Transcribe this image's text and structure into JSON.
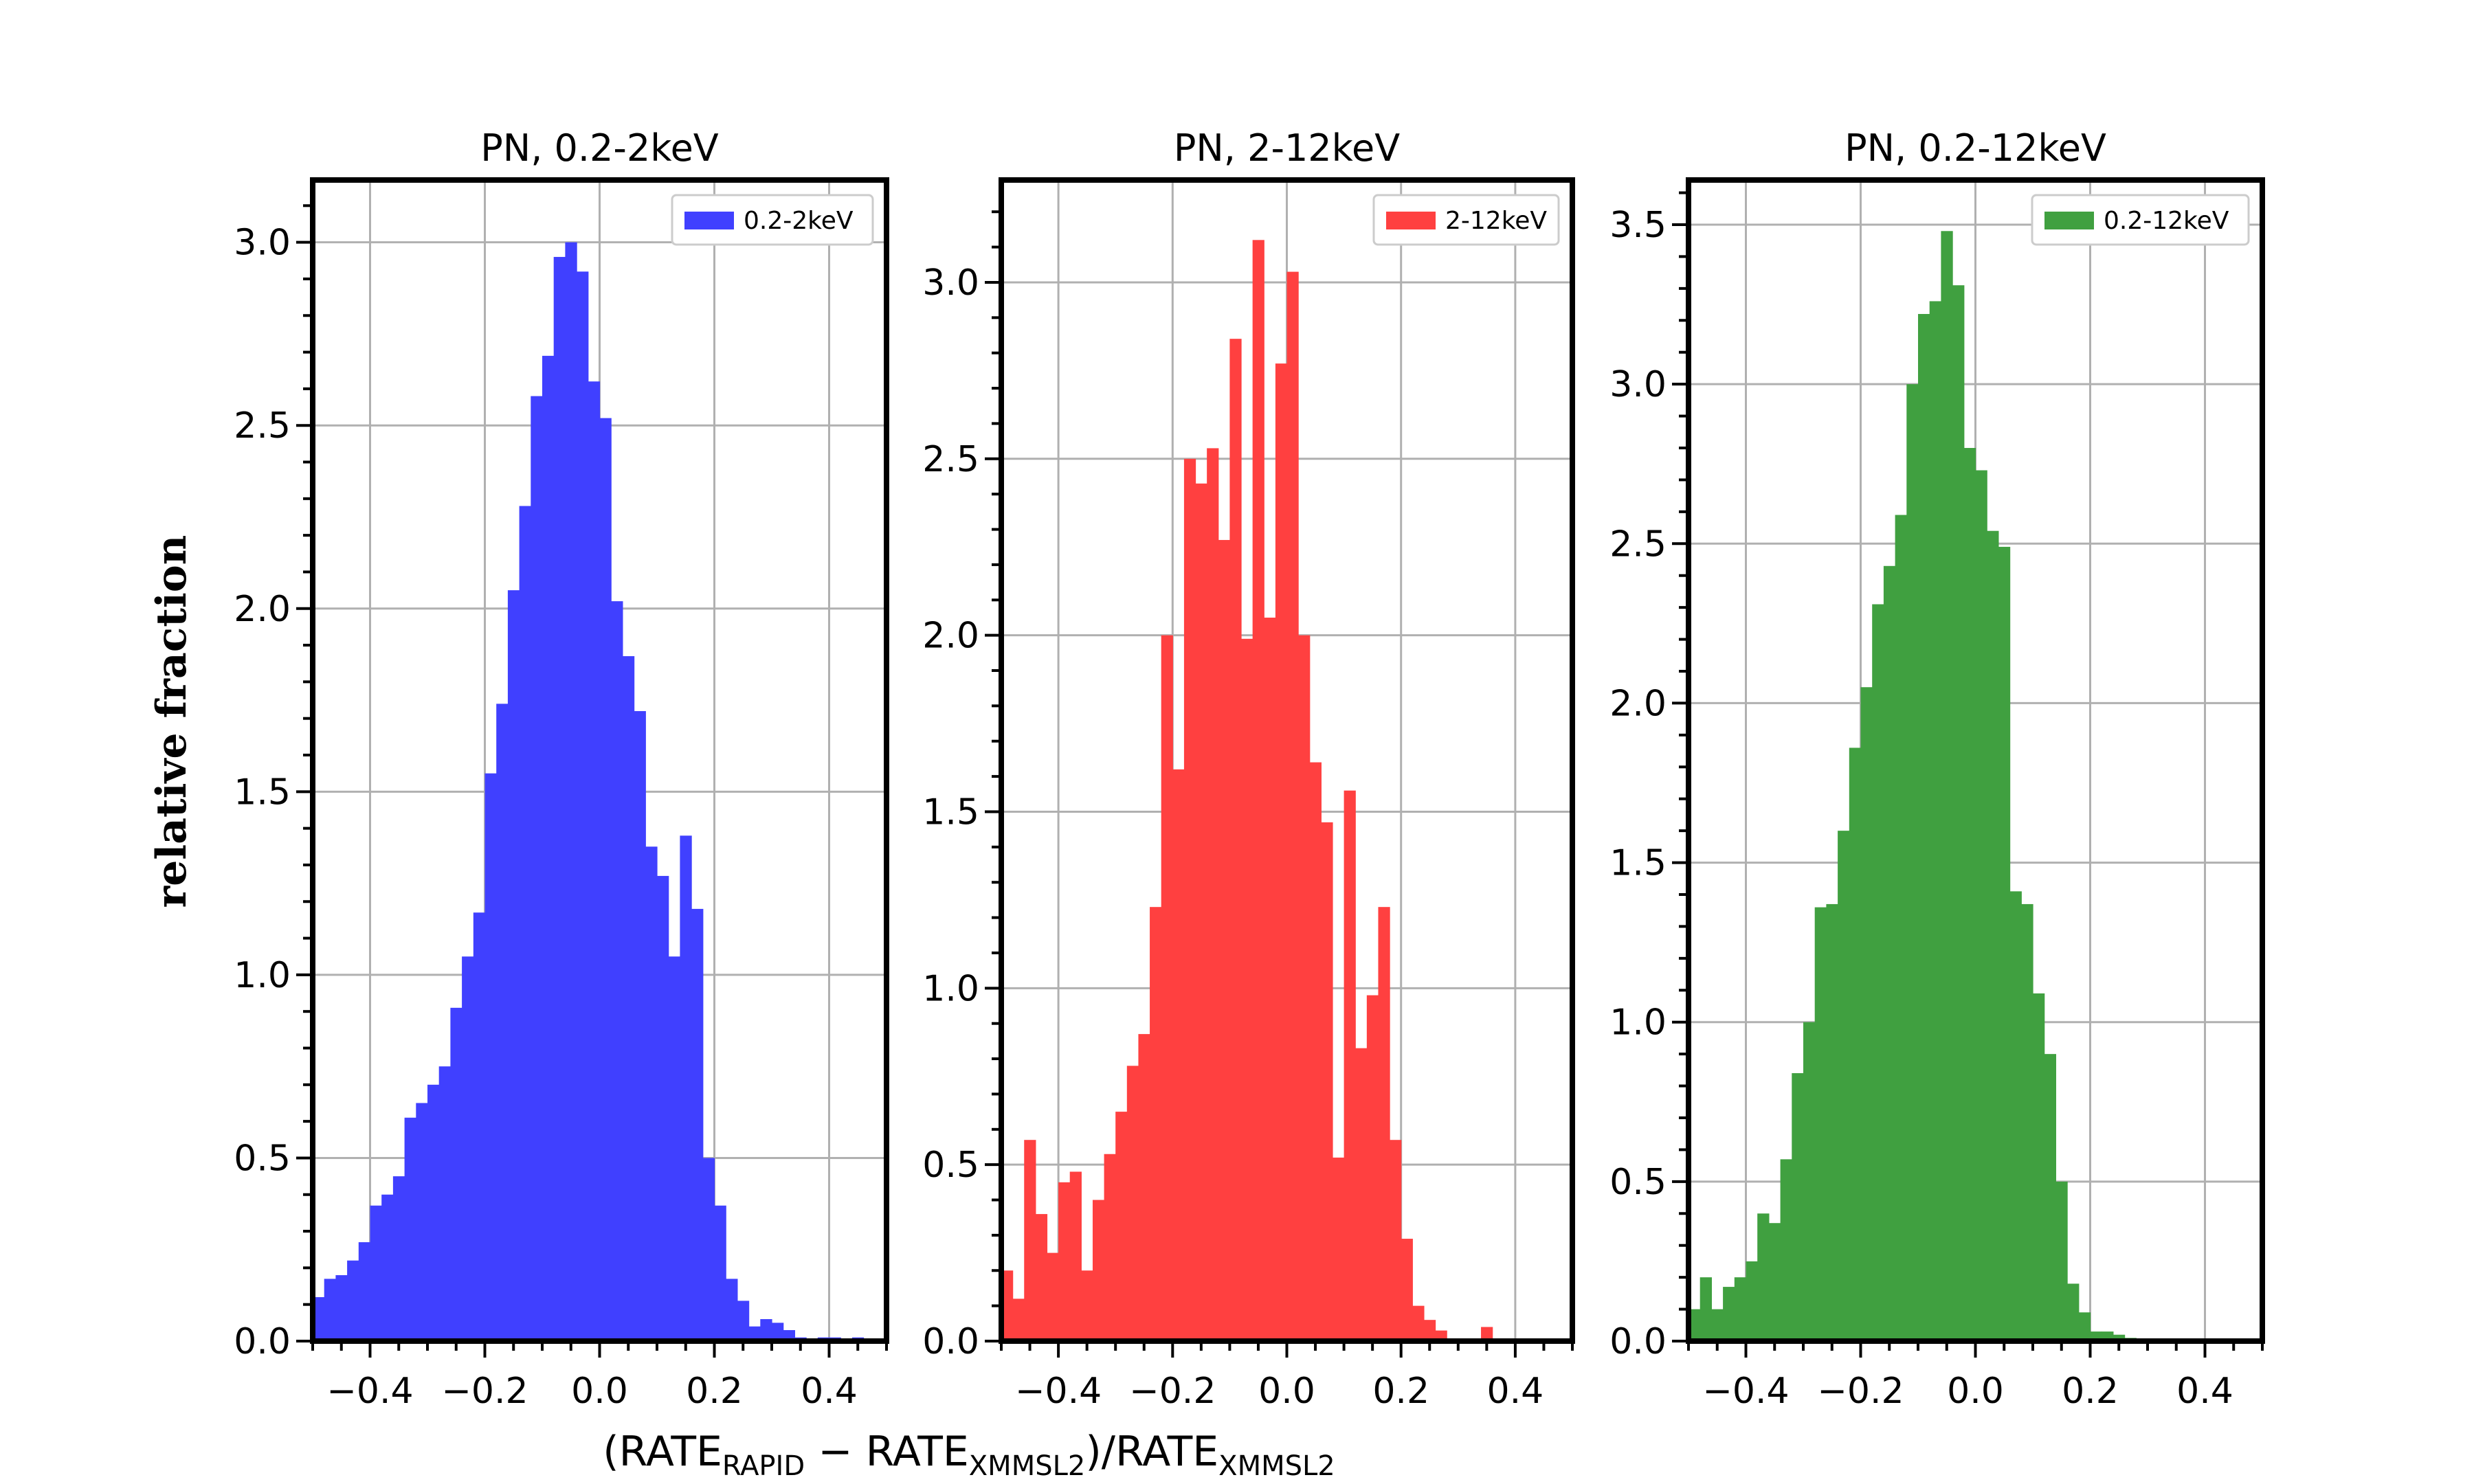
{
  "figure": {
    "ylabel": "relative fraction",
    "xlabel": {
      "prefix": "(RATE",
      "sub1": "RAPID",
      "mid": " − RATE",
      "sub2": "XMMSL2",
      "mid2": ")/RATE",
      "sub3": "XMMSL2"
    }
  },
  "chart_data": [
    {
      "type": "bar",
      "title": "PN, 0.2-2keV",
      "legend": "0.2-2keV",
      "legend_position": "top-right",
      "color": "#4040ff",
      "grid": true,
      "xlim": [
        -0.5,
        0.5
      ],
      "ylim": [
        0,
        3.17
      ],
      "xticks": [
        -0.4,
        -0.2,
        0.0,
        0.2,
        0.4
      ],
      "xtick_labels": [
        "−0.4",
        "−0.2",
        "0.0",
        "0.2",
        "0.4"
      ],
      "yticks": [
        0.0,
        0.5,
        1.0,
        1.5,
        2.0,
        2.5,
        3.0
      ],
      "ytick_labels": [
        "0.0",
        "0.5",
        "1.0",
        "1.5",
        "2.0",
        "2.5",
        "3.0"
      ],
      "bin_edges": [
        -0.5,
        -0.48,
        -0.46,
        -0.44,
        -0.42,
        -0.4,
        -0.38,
        -0.36,
        -0.34,
        -0.32,
        -0.3,
        -0.28,
        -0.26,
        -0.24,
        -0.22,
        -0.2,
        -0.18,
        -0.16,
        -0.14,
        -0.12,
        -0.1,
        -0.08,
        -0.06,
        -0.04,
        -0.02,
        0.0,
        0.02,
        0.04,
        0.06,
        0.08,
        0.1,
        0.12,
        0.14,
        0.16,
        0.18,
        0.2,
        0.22,
        0.24,
        0.26,
        0.28,
        0.3,
        0.32,
        0.34,
        0.36,
        0.38,
        0.4,
        0.42,
        0.44,
        0.46,
        0.48,
        0.5
      ],
      "values": [
        0.12,
        0.17,
        0.18,
        0.22,
        0.27,
        0.37,
        0.4,
        0.45,
        0.61,
        0.65,
        0.7,
        0.75,
        0.91,
        1.05,
        1.17,
        1.55,
        1.74,
        2.05,
        2.28,
        2.58,
        2.69,
        2.96,
        3.0,
        2.92,
        2.62,
        2.52,
        2.02,
        1.87,
        1.72,
        1.35,
        1.27,
        1.05,
        1.38,
        1.18,
        0.5,
        0.37,
        0.17,
        0.11,
        0.04,
        0.06,
        0.05,
        0.03,
        0.01,
        0.005,
        0.01,
        0.01,
        0.0,
        0.01,
        0.0,
        0.0
      ]
    },
    {
      "type": "bar",
      "title": "PN, 2-12keV",
      "legend": "2-12keV",
      "legend_position": "top-right",
      "color": "#ff4040",
      "grid": true,
      "xlim": [
        -0.5,
        0.5
      ],
      "ylim": [
        0,
        3.29
      ],
      "xticks": [
        -0.4,
        -0.2,
        0.0,
        0.2,
        0.4
      ],
      "xtick_labels": [
        "−0.4",
        "−0.2",
        "0.0",
        "0.2",
        "0.4"
      ],
      "yticks": [
        0.0,
        0.5,
        1.0,
        1.5,
        2.0,
        2.5,
        3.0
      ],
      "ytick_labels": [
        "0.0",
        "0.5",
        "1.0",
        "1.5",
        "2.0",
        "2.5",
        "3.0"
      ],
      "bin_edges": [
        -0.5,
        -0.48,
        -0.46,
        -0.44,
        -0.42,
        -0.4,
        -0.38,
        -0.36,
        -0.34,
        -0.32,
        -0.3,
        -0.28,
        -0.26,
        -0.24,
        -0.22,
        -0.2,
        -0.18,
        -0.16,
        -0.14,
        -0.12,
        -0.1,
        -0.08,
        -0.06,
        -0.04,
        -0.02,
        0.0,
        0.02,
        0.04,
        0.06,
        0.08,
        0.1,
        0.12,
        0.14,
        0.16,
        0.18,
        0.2,
        0.22,
        0.24,
        0.26,
        0.28,
        0.3,
        0.32,
        0.34,
        0.36,
        0.38,
        0.4,
        0.42,
        0.44,
        0.46,
        0.48,
        0.5
      ],
      "values": [
        0.2,
        0.12,
        0.57,
        0.36,
        0.25,
        0.45,
        0.48,
        0.2,
        0.4,
        0.53,
        0.65,
        0.78,
        0.87,
        1.23,
        2.0,
        1.62,
        2.5,
        2.43,
        2.53,
        2.27,
        2.84,
        1.99,
        3.12,
        2.05,
        2.77,
        3.03,
        2.0,
        1.64,
        1.47,
        0.52,
        1.56,
        0.83,
        0.98,
        1.23,
        0.57,
        0.29,
        0.1,
        0.06,
        0.03,
        0.0,
        0.0,
        0.0,
        0.04,
        0.0,
        0.0,
        0.0,
        0.0,
        0.0,
        0.0,
        0.0
      ]
    },
    {
      "type": "bar",
      "title": "PN, 0.2-12keV",
      "legend": "0.2-12keV",
      "legend_position": "top-right",
      "color": "#40a040",
      "grid": true,
      "xlim": [
        -0.5,
        0.5
      ],
      "ylim": [
        0,
        3.64
      ],
      "xticks": [
        -0.4,
        -0.2,
        0.0,
        0.2,
        0.4
      ],
      "xtick_labels": [
        "−0.4",
        "−0.2",
        "0.0",
        "0.2",
        "0.4"
      ],
      "yticks": [
        0.0,
        0.5,
        1.0,
        1.5,
        2.0,
        2.5,
        3.0,
        3.5
      ],
      "ytick_labels": [
        "0.0",
        "0.5",
        "1.0",
        "1.5",
        "2.0",
        "2.5",
        "3.0",
        "3.5"
      ],
      "bin_edges": [
        -0.5,
        -0.48,
        -0.46,
        -0.44,
        -0.42,
        -0.4,
        -0.38,
        -0.36,
        -0.34,
        -0.32,
        -0.3,
        -0.28,
        -0.26,
        -0.24,
        -0.22,
        -0.2,
        -0.18,
        -0.16,
        -0.14,
        -0.12,
        -0.1,
        -0.08,
        -0.06,
        -0.04,
        -0.02,
        0.0,
        0.02,
        0.04,
        0.06,
        0.08,
        0.1,
        0.12,
        0.14,
        0.16,
        0.18,
        0.2,
        0.22,
        0.24,
        0.26,
        0.28,
        0.3,
        0.32,
        0.34,
        0.36,
        0.38,
        0.4,
        0.42,
        0.44,
        0.46,
        0.48,
        0.5
      ],
      "values": [
        0.1,
        0.2,
        0.1,
        0.17,
        0.2,
        0.25,
        0.4,
        0.37,
        0.57,
        0.84,
        1.0,
        1.36,
        1.37,
        1.6,
        1.86,
        2.05,
        2.31,
        2.43,
        2.59,
        3.0,
        3.22,
        3.26,
        3.48,
        3.31,
        2.8,
        2.73,
        2.54,
        2.49,
        1.41,
        1.37,
        1.09,
        0.9,
        0.5,
        0.18,
        0.09,
        0.03,
        0.03,
        0.02,
        0.01,
        0.0,
        0.0,
        0.0,
        0.0,
        0.0,
        0.0,
        0.0,
        0.0,
        0.0,
        0.0,
        0.0
      ]
    }
  ]
}
